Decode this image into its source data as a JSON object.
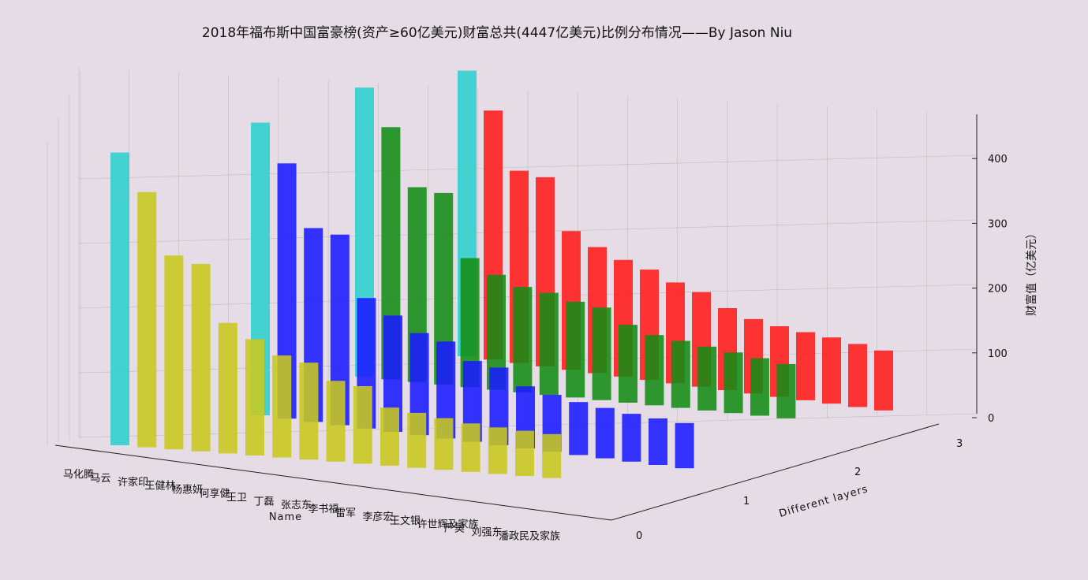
{
  "chart_data": {
    "type": "bar3d",
    "title": "2018年福布斯中国富豪榜(资产≥60亿美元)财富总共(4447亿美元)比例分布情况——By Jason Niu",
    "xlabel": "Name",
    "ylabel": "Different layers",
    "zlabel": "财富值（亿美元）",
    "zlim": [
      0,
      450
    ],
    "z_ticks": [
      "0",
      "100",
      "200",
      "300",
      "400"
    ],
    "y_ticks": [
      "0",
      "1",
      "2",
      "3"
    ],
    "grid": true,
    "x_tick_labels": [
      "马化腾",
      "马云",
      "许家印",
      "王健林",
      "杨惠妍",
      "何享健",
      "王卫",
      "丁磊",
      "张志东",
      "李书福",
      "雷军",
      "李彦宏",
      "王文银",
      "许世辉及家族",
      "严昊",
      "刘强东",
      "潘政民及家族"
    ],
    "highlight_color": "#2ecfcf",
    "series": [
      {
        "layer": 0,
        "color": "#c8c81e",
        "values": [
          453,
          395,
          300,
          290,
          202,
          180,
          158,
          150,
          125,
          120,
          90,
          85,
          80,
          75,
          72,
          70,
          68
        ]
      },
      {
        "layer": 1,
        "color": "#1a1aff",
        "values": [
          453,
          395,
          300,
          295,
          202,
          180,
          158,
          150,
          125,
          120,
          96,
          88,
          82,
          78,
          74,
          72,
          70
        ]
      },
      {
        "layer": 2,
        "color": "#148c14",
        "values": [
          453,
          395,
          305,
          300,
          202,
          180,
          165,
          160,
          150,
          145,
          122,
          110,
          105,
          100,
          95,
          90,
          85
        ]
      },
      {
        "layer": 3,
        "color": "#ff1a1a",
        "values": [
          453,
          395,
          305,
          300,
          220,
          200,
          185,
          175,
          160,
          150,
          130,
          118,
          112,
          108,
          105,
          100,
          95
        ]
      }
    ]
  }
}
